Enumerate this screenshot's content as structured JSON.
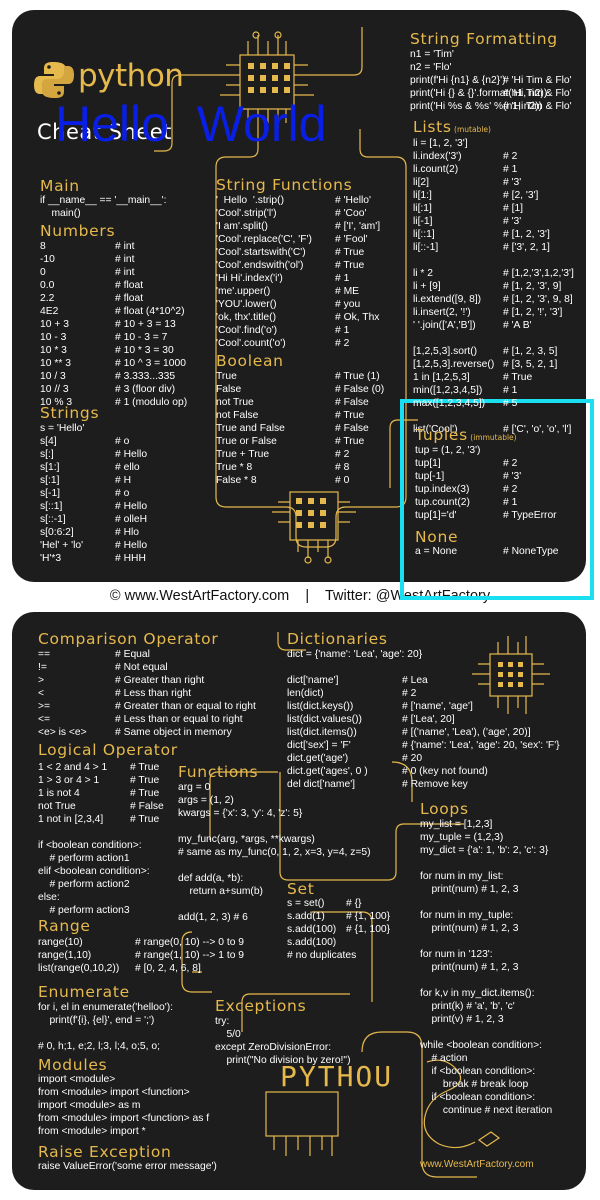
{
  "header": {
    "logo_text": "python",
    "subtitle": "Cheat Sheet",
    "overlay_text": "Hello  World"
  },
  "credit": "© www.WestArtFactory.com    |    Twitter: @WestArtFactory",
  "site_url": "www.WestArtFactory.com",
  "pythou": "PYTHOU",
  "colors": {
    "card": "#1d1d1d",
    "gold": "#e6b94d",
    "overlay_blue": "#0a1fe6",
    "highlight_cyan": "#19dff0"
  },
  "sections": [
    {
      "title": "String Formatting",
      "note": "",
      "x": 0,
      "rows": [
        [
          "n1 = 'Tim'",
          ""
        ],
        [
          "n2 = 'Flo'",
          ""
        ],
        [
          "print(f'Hi {n1} & {n2}')",
          "# 'Hi Tim & Flo'"
        ],
        [
          "print('Hi {} & {}'.format(n1, n2))",
          "# 'Hi Tim & Flo'"
        ],
        [
          "print('Hi %s & %s' %(n1, n2))",
          "# 'Hi Tim & Flo'"
        ]
      ]
    },
    {
      "title": "Lists",
      "note": "(mutable)",
      "rows": [
        [
          "li = [1, 2, '3']",
          ""
        ],
        [
          "li.index('3')",
          "# 2"
        ],
        [
          "li.count(2)",
          "# 1"
        ],
        [
          "li[2]",
          "# '3'"
        ],
        [
          "li[1:]",
          "# [2, '3']"
        ],
        [
          "li[:1]",
          "# [1]"
        ],
        [
          "li[-1]",
          "# '3'"
        ],
        [
          "li[::1]",
          "# [1, 2, '3']"
        ],
        [
          "li[::-1]",
          "# ['3', 2, 1]"
        ],
        [
          "",
          ""
        ],
        [
          "li * 2",
          "# [1,2,'3',1,2,'3']"
        ],
        [
          "li + [9]",
          "# [1, 2, '3', 9]"
        ],
        [
          "li.extend([9, 8])",
          "# [1, 2, '3', 9, 8]"
        ],
        [
          "li.insert(2, '!')",
          "# [1, 2, '!', '3']"
        ],
        [
          "' '.join(['A','B'])",
          "# 'A B'"
        ],
        [
          "",
          ""
        ],
        [
          "[1,2,5,3].sort()",
          "# [1, 2, 3, 5]"
        ],
        [
          "[1,2,5,3].reverse()",
          "# [3, 5, 2, 1]"
        ],
        [
          "1 in [1,2,5,3]",
          "# True"
        ],
        [
          "min([1,2,3,4,5])",
          "# 1"
        ],
        [
          "max([1,2,3,4,5])",
          "# 5"
        ],
        [
          "",
          ""
        ],
        [
          "list('Cool')",
          "# ['C', 'o', 'o', 'l']"
        ]
      ]
    },
    {
      "title": "Main",
      "note": "",
      "rows": [
        [
          "if __name__ == '__main__':",
          ""
        ],
        [
          "    main()",
          ""
        ]
      ]
    },
    {
      "title": "Numbers",
      "note": "",
      "rows": [
        [
          "8",
          "# int"
        ],
        [
          "-10",
          "# int"
        ],
        [
          "0",
          "# int"
        ],
        [
          "0.0",
          "# float"
        ],
        [
          "2.2",
          "# float"
        ],
        [
          "4E2",
          "# float (4*10^2)"
        ],
        [
          "10 + 3",
          "# 10 + 3 = 13"
        ],
        [
          "10 - 3",
          "# 10 - 3 = 7"
        ],
        [
          "10 * 3",
          "# 10 * 3 = 30"
        ],
        [
          "10 ** 3",
          "# 10 ^ 3 = 1000"
        ],
        [
          "10 / 3",
          "# 3.333...335"
        ],
        [
          "10 // 3",
          "# 3 (floor div)"
        ],
        [
          "10 % 3",
          "# 1 (modulo op)"
        ]
      ]
    },
    {
      "title": "Strings",
      "note": "",
      "rows": [
        [
          "s = 'Hello'",
          ""
        ],
        [
          "s[4]",
          "# o"
        ],
        [
          "s[:]",
          "# Hello"
        ],
        [
          "s[1:]",
          "# ello"
        ],
        [
          "s[:1]",
          "# H"
        ],
        [
          "s[-1]",
          "# o"
        ],
        [
          "s[::1]",
          "# Hello"
        ],
        [
          "s[::-1]",
          "# olleH"
        ],
        [
          "s[0:6:2]",
          "# Hlo"
        ],
        [
          "'Hel' + 'lo'",
          "# Hello"
        ],
        [
          "'H'*3",
          "# HHH"
        ]
      ]
    },
    {
      "title": "String Functions",
      "note": "",
      "rows": [
        [
          "'  Hello  '.strip()",
          "# 'Hello'"
        ],
        [
          "'Cool'.strip('l')",
          "# 'Coo'"
        ],
        [
          "'I am'.split()",
          "# ['I', 'am']"
        ],
        [
          "'Cool'.replace('C', 'F')",
          "# 'Fool'"
        ],
        [
          "'Cool'.startswith('C')",
          "# True"
        ],
        [
          "'Cool'.endswith('ol')",
          "# True"
        ],
        [
          "'Hi Hi'.index('i')",
          "# 1"
        ],
        [
          "'me'.upper()",
          "# ME"
        ],
        [
          "'YOU'.lower()",
          "# you"
        ],
        [
          "'ok, thx'.title()",
          "# Ok, Thx"
        ],
        [
          "'Cool'.find('o')",
          "# 1"
        ],
        [
          "'Cool'.count('o')",
          "# 2"
        ]
      ]
    },
    {
      "title": "Boolean",
      "note": "",
      "rows": [
        [
          "True",
          "# True (1)"
        ],
        [
          "False",
          "# False (0)"
        ],
        [
          "not True",
          "# False"
        ],
        [
          "not False",
          "# True"
        ],
        [
          "True and False",
          "# False"
        ],
        [
          "True or False",
          "# True"
        ],
        [
          "True + True",
          "# 2"
        ],
        [
          "True * 8",
          "# 8"
        ],
        [
          "False * 8",
          "# 0"
        ]
      ]
    },
    {
      "title": "Tuples",
      "note": "(immutable)",
      "rows": [
        [
          "tup = (1, 2, '3')",
          ""
        ],
        [
          "tup[1]",
          "# 2"
        ],
        [
          "tup[-1]",
          "# '3'"
        ],
        [
          "tup.index(3)",
          "# 2"
        ],
        [
          "tup.count(2)",
          "# 1"
        ],
        [
          "tup[1]='d'",
          "# TypeError"
        ]
      ]
    },
    {
      "title": "None",
      "note": "",
      "rows": [
        [
          "a = None",
          "# NoneType"
        ]
      ]
    },
    {
      "title": "Comparison Operator",
      "note": "",
      "rows": [
        [
          "==",
          "# Equal"
        ],
        [
          "!=",
          "# Not equal"
        ],
        [
          ">",
          "# Greater than right"
        ],
        [
          "<",
          "# Less than right"
        ],
        [
          ">=",
          "# Greater than or equal to right"
        ],
        [
          "<=",
          "# Less than or equal to right"
        ],
        [
          "<e> is <e>",
          "# Same object in memory"
        ]
      ]
    },
    {
      "title": "Logical Operator",
      "note": "",
      "rows": [
        [
          "1 < 2 and 4 > 1",
          "# True"
        ],
        [
          "1 > 3 or 4 > 1",
          "# True"
        ],
        [
          "1 is not 4",
          "# True"
        ],
        [
          "not True",
          "# False"
        ],
        [
          "1 not in [2,3,4]",
          "# True"
        ],
        [
          "",
          ""
        ],
        [
          "if <boolean condition>:",
          ""
        ],
        [
          "    # perform action1",
          ""
        ],
        [
          "elif <boolean condition>:",
          ""
        ],
        [
          "    # perform action2",
          ""
        ],
        [
          "else:",
          ""
        ],
        [
          "    # perform action3",
          ""
        ]
      ]
    },
    {
      "title": "Range",
      "note": "",
      "rows": [
        [
          "range(10)",
          "# range(0, 10) --> 0 to 9"
        ],
        [
          "range(1,10)",
          "# range(1, 10) --> 1 to 9"
        ],
        [
          "list(range(0,10,2))",
          "# [0, 2, 4, 6, 8]"
        ]
      ]
    },
    {
      "title": "Enumerate",
      "note": "",
      "rows": [
        [
          "for i, el in enumerate('helloo'):",
          ""
        ],
        [
          "    print(f'{i}, {el}', end = ';')",
          ""
        ],
        [
          "",
          ""
        ],
        [
          "# 0, h;1, e;2, l;3, l;4, o;5, o;",
          ""
        ]
      ]
    },
    {
      "title": "Modules",
      "note": "",
      "rows": [
        [
          "import <module>",
          ""
        ],
        [
          "from <module> import <function>",
          ""
        ],
        [
          "import <module> as m",
          ""
        ],
        [
          "from <module> import <function> as f",
          ""
        ],
        [
          "from <module> import *",
          ""
        ]
      ]
    },
    {
      "title": "Raise Exception",
      "note": "",
      "rows": [
        [
          "raise ValueError('some error message')",
          ""
        ]
      ]
    },
    {
      "title": "Dictionaries",
      "note": "",
      "rows": [
        [
          "dict = {'name': 'Lea', 'age': 20}",
          ""
        ],
        [
          "",
          ""
        ],
        [
          "dict['name']",
          "# Lea"
        ],
        [
          "len(dict)",
          "# 2"
        ],
        [
          "list(dict.keys())",
          "# ['name', 'age']"
        ],
        [
          "list(dict.values())",
          "# ['Lea', 20]"
        ],
        [
          "list(dict.items())",
          "# [('name', 'Lea'), ('age', 20)]"
        ],
        [
          "dict['sex'] = 'F'",
          "# {'name': 'Lea', 'age': 20, 'sex': 'F'}"
        ],
        [
          "dict.get('age')",
          "# 20"
        ],
        [
          "dict.get('ages', 0 )",
          "# 0 (key not found)"
        ],
        [
          "del dict['name']",
          "# Remove key"
        ]
      ]
    },
    {
      "title": "Functions",
      "note": "",
      "rows": [
        [
          "arg = 0",
          ""
        ],
        [
          "args = (1, 2)",
          ""
        ],
        [
          "kwargs = {'x': 3, 'y': 4, 'z': 5}",
          ""
        ],
        [
          "",
          ""
        ],
        [
          "my_func(arg, *args, **kwargs)",
          ""
        ],
        [
          "# same as my_func(0, 1, 2, x=3, y=4, z=5)",
          ""
        ],
        [
          "",
          ""
        ],
        [
          "def add(a, *b):",
          ""
        ],
        [
          "    return a+sum(b)",
          ""
        ],
        [
          "",
          ""
        ],
        [
          "add(1, 2, 3) # 6",
          ""
        ]
      ]
    },
    {
      "title": "Set",
      "note": "",
      "rows": [
        [
          "s = set()",
          "# {}"
        ],
        [
          "s.add(1)",
          "# {1, 100}"
        ],
        [
          "s.add(100)",
          "# {1, 100}"
        ],
        [
          "s.add(100)",
          ""
        ],
        [
          "# no duplicates",
          ""
        ]
      ]
    },
    {
      "title": "Loops",
      "note": "",
      "rows": [
        [
          "my_list = [1,2,3]",
          ""
        ],
        [
          "my_tuple = (1,2,3)",
          ""
        ],
        [
          "my_dict = {'a': 1, 'b': 2, 'c': 3}",
          ""
        ],
        [
          "",
          ""
        ],
        [
          "for num in my_list:",
          ""
        ],
        [
          "    print(num) # 1, 2, 3",
          ""
        ],
        [
          "",
          ""
        ],
        [
          "for num in my_tuple:",
          ""
        ],
        [
          "    print(num) # 1, 2, 3",
          ""
        ],
        [
          "",
          ""
        ],
        [
          "for num in '123':",
          ""
        ],
        [
          "    print(num) # 1, 2, 3",
          ""
        ],
        [
          "",
          ""
        ],
        [
          "for k,v in my_dict.items():",
          ""
        ],
        [
          "    print(k) # 'a', 'b', 'c'",
          ""
        ],
        [
          "    print(v) # 1, 2, 3",
          ""
        ],
        [
          "",
          ""
        ],
        [
          "while <boolean condition>:",
          ""
        ],
        [
          "    # action",
          ""
        ],
        [
          "    if <boolean condition>:",
          ""
        ],
        [
          "        break # break loop",
          ""
        ],
        [
          "    if <boolean condition>:",
          ""
        ],
        [
          "        continue # next iteration",
          ""
        ]
      ]
    },
    {
      "title": "Exceptions",
      "note": "",
      "rows": [
        [
          "try:",
          ""
        ],
        [
          "    5/0",
          ""
        ],
        [
          "except ZeroDivisionError:",
          ""
        ],
        [
          "    print(\"No division by zero!\")",
          ""
        ]
      ]
    }
  ]
}
